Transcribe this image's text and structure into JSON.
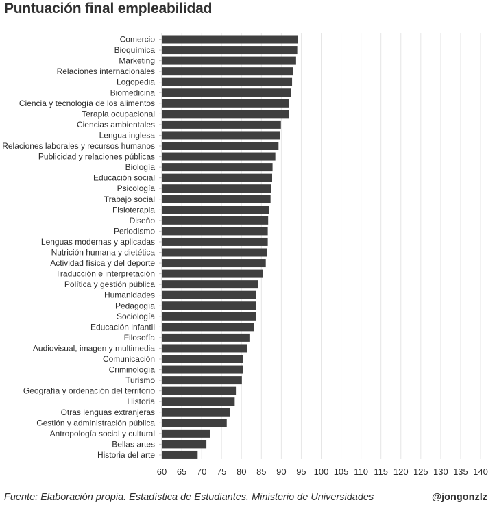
{
  "chart_data": {
    "type": "bar",
    "orientation": "horizontal",
    "title": "Puntuación final empleabilidad",
    "categories": [
      "Comercio",
      "Bioquímica",
      "Marketing",
      "Relaciones internacionales",
      "Logopedia",
      "Biomedicina",
      "Ciencia y tecnología de los alimentos",
      "Terapia ocupacional",
      "Ciencias ambientales",
      "Lengua inglesa",
      "Relaciones laborales y recursos humanos",
      "Publicidad y relaciones públicas",
      "Biología",
      "Educación social",
      "Psicología",
      "Trabajo social",
      "Fisioterapia",
      "Diseño",
      "Periodismo",
      "Lenguas modernas y aplicadas",
      "Nutrición humana y dietética",
      "Actividad física y del deporte",
      "Traducción e interpretación",
      "Política y gestión pública",
      "Humanidades",
      "Pedagogía",
      "Sociología",
      "Educación infantil",
      "Filosofía",
      "Audiovisual, imagen y multimedia",
      "Comunicación",
      "Criminología",
      "Turismo",
      "Geografía y ordenación del territorio",
      "Historia",
      "Otras lenguas extranjeras",
      "Gestión y administración pública",
      "Antropología social y cultural",
      "Bellas artes",
      "Historia del arte"
    ],
    "values": [
      94.2,
      94.0,
      93.7,
      93.0,
      92.7,
      92.5,
      92.0,
      92.0,
      89.9,
      89.7,
      89.3,
      88.5,
      87.8,
      87.7,
      87.4,
      87.3,
      87.0,
      86.7,
      86.6,
      86.6,
      86.4,
      86.1,
      85.3,
      84.1,
      83.7,
      83.6,
      83.6,
      83.2,
      82.0,
      81.4,
      80.4,
      80.4,
      80.1,
      78.6,
      78.3,
      77.2,
      76.3,
      72.2,
      71.2,
      69.0
    ],
    "xlim": [
      60,
      140
    ],
    "xticks": [
      "60",
      "65",
      "70",
      "75",
      "80",
      "85",
      "90",
      "95",
      "100",
      "105",
      "110",
      "115",
      "120",
      "125",
      "130",
      "135",
      "140"
    ],
    "grid": true,
    "bar_color": "#3f3f3f"
  },
  "footer": {
    "source": "Fuente: Elaboración propia. Estadística de Estudiantes. Ministerio de Universidades",
    "author": "@jongonzlz"
  }
}
